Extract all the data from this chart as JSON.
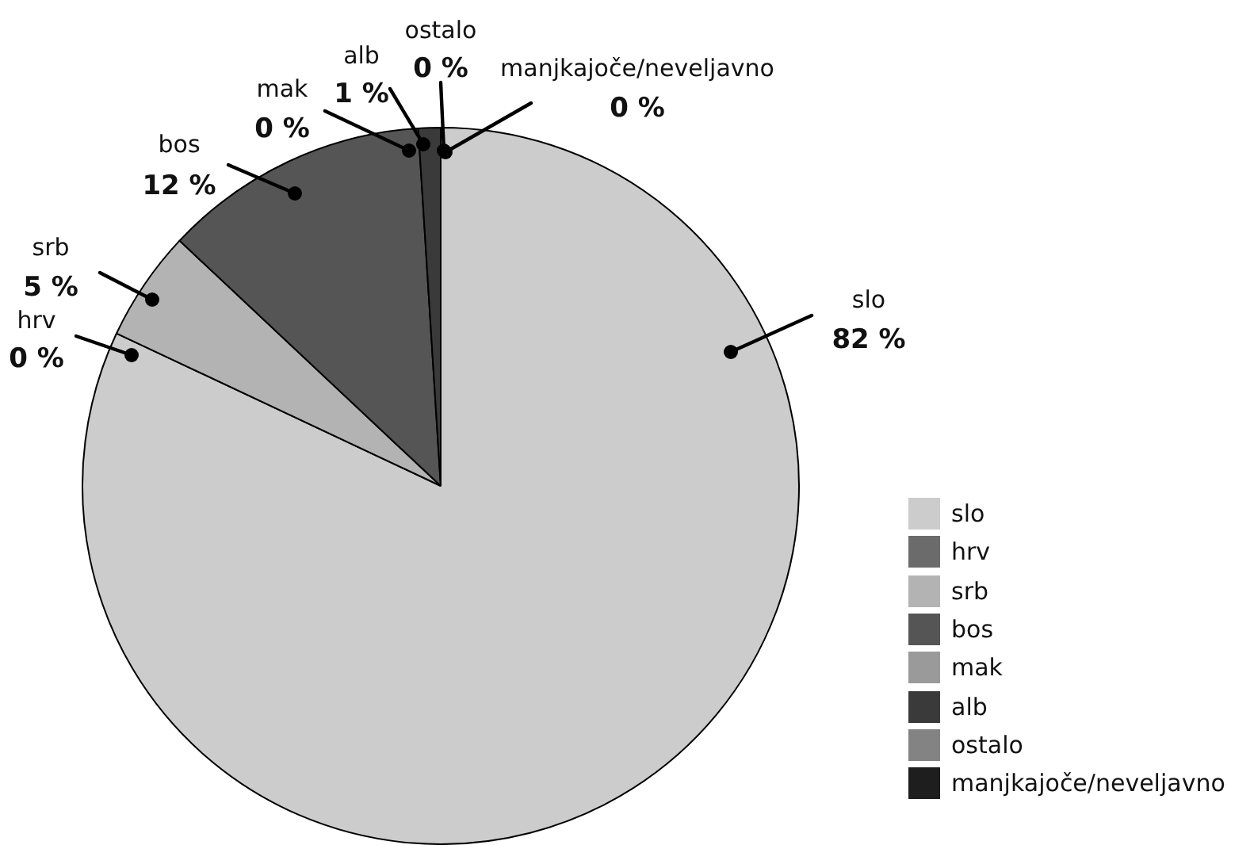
{
  "chart_data": {
    "type": "pie",
    "categories": [
      "slo",
      "hrv",
      "srb",
      "bos",
      "mak",
      "alb",
      "ostalo",
      "manjkajoče/neveljavno"
    ],
    "values": [
      82,
      0,
      5,
      12,
      0,
      1,
      0,
      0
    ],
    "value_labels": [
      "82 %",
      "0 %",
      "5 %",
      "12 %",
      "0 %",
      "1 %",
      "0 %",
      "0 %"
    ],
    "colors": [
      "#cccccc",
      "#6b6b6b",
      "#b3b3b3",
      "#555555",
      "#9a9a9a",
      "#3a3a3a",
      "#838383",
      "#1e1e1e"
    ],
    "legend": "bottom right"
  }
}
